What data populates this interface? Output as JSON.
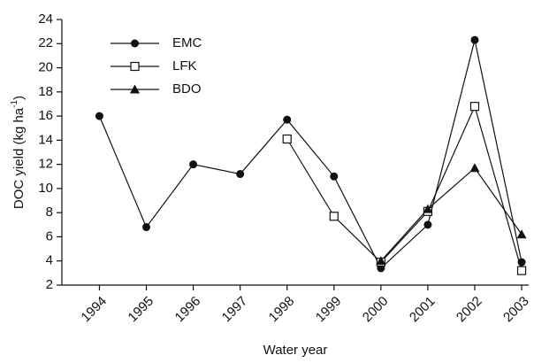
{
  "chart_data": {
    "type": "line",
    "xlabel": "Water year",
    "ylabel": [
      "DOC yield (kg ha",
      "-1",
      ")"
    ],
    "x": [
      1994,
      1995,
      1996,
      1997,
      1998,
      1999,
      2000,
      2001,
      2002,
      2003
    ],
    "series": [
      {
        "name": "EMC",
        "color": "#111111",
        "marker": "circle",
        "values": [
          16.0,
          6.8,
          12.0,
          11.2,
          15.7,
          11.0,
          3.4,
          7.0,
          22.3,
          3.9
        ]
      },
      {
        "name": "LFK",
        "color": "#111111",
        "marker": "square",
        "values": [
          null,
          null,
          null,
          null,
          14.1,
          7.7,
          3.9,
          8.1,
          16.8,
          3.2
        ]
      },
      {
        "name": "BDO",
        "color": "#111111",
        "marker": "triangle",
        "values": [
          null,
          null,
          null,
          null,
          null,
          null,
          4.0,
          8.3,
          11.7,
          6.2
        ]
      }
    ],
    "xlim": [
      1993.2,
      2003.15
    ],
    "xticks": [
      1994,
      1995,
      1996,
      1997,
      1998,
      1999,
      2000,
      2001,
      2002,
      2003
    ],
    "ylim": [
      2,
      24
    ],
    "yticks": [
      2,
      4,
      6,
      8,
      10,
      12,
      14,
      16,
      18,
      20,
      22,
      24
    ],
    "grid": false,
    "legend": "upper-left"
  }
}
